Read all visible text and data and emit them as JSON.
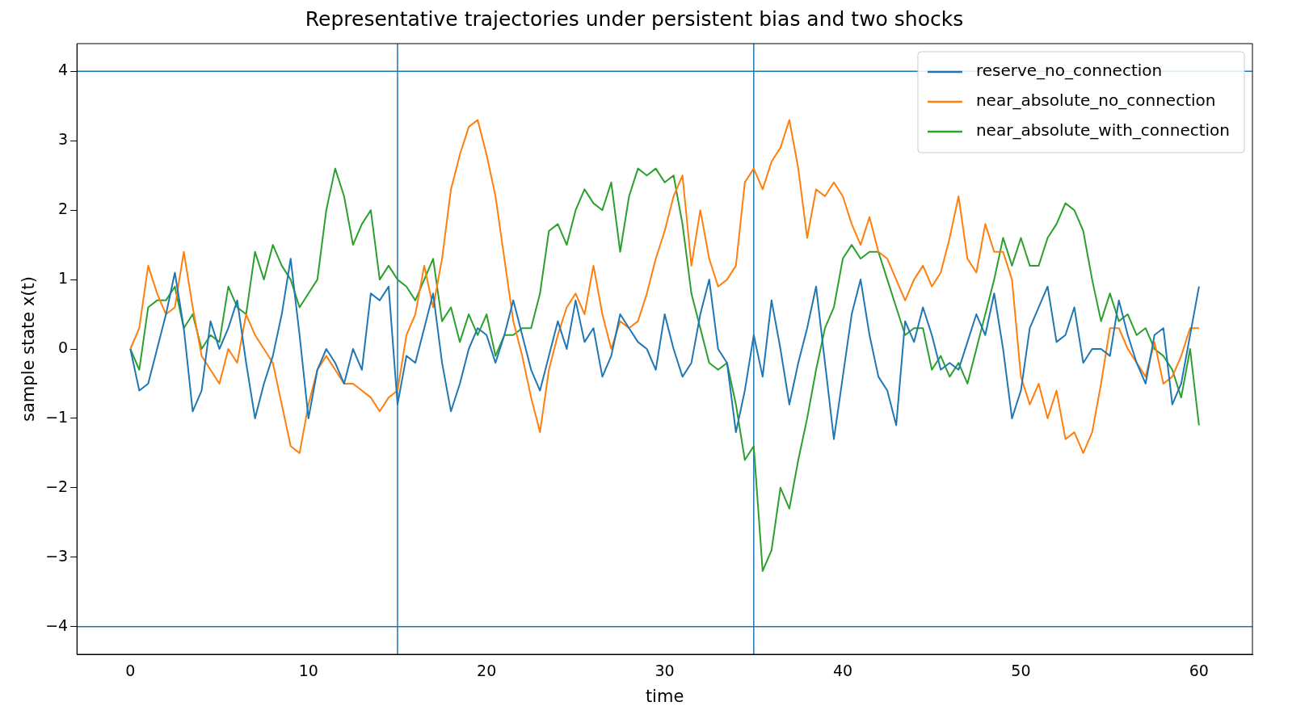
{
  "chart_data": {
    "type": "line",
    "title": "Representative trajectories under persistent bias and two shocks",
    "xlabel": "time",
    "ylabel": "sample state x(t)",
    "x": [
      0,
      0.5,
      1,
      1.5,
      2,
      2.5,
      3,
      3.5,
      4,
      4.5,
      5,
      5.5,
      6,
      6.5,
      7,
      7.5,
      8,
      8.5,
      9,
      9.5,
      10,
      10.5,
      11,
      11.5,
      12,
      12.5,
      13,
      13.5,
      14,
      14.5,
      15,
      15.5,
      16,
      16.5,
      17,
      17.5,
      18,
      18.5,
      19,
      19.5,
      20,
      20.5,
      21,
      21.5,
      22,
      22.5,
      23,
      23.5,
      24,
      24.5,
      25,
      25.5,
      26,
      26.5,
      27,
      27.5,
      28,
      28.5,
      29,
      29.5,
      30,
      30.5,
      31,
      31.5,
      32,
      32.5,
      33,
      33.5,
      34,
      34.5,
      35,
      35.5,
      36,
      36.5,
      37,
      37.5,
      38,
      38.5,
      39,
      39.5,
      40,
      40.5,
      41,
      41.5,
      42,
      42.5,
      43,
      43.5,
      44,
      44.5,
      45,
      45.5,
      46,
      46.5,
      47,
      47.5,
      48,
      48.5,
      49,
      49.5,
      50,
      50.5,
      51,
      51.5,
      52,
      52.5,
      53,
      53.5,
      54,
      54.5,
      55,
      55.5,
      56,
      56.5,
      57,
      57.5,
      58,
      58.5,
      59,
      59.5,
      60
    ],
    "series": [
      {
        "name": "reserve_no_connection",
        "color": "#1f77b4",
        "values": [
          0.0,
          -0.6,
          -0.5,
          0.0,
          0.5,
          1.1,
          0.3,
          -0.9,
          -0.6,
          0.4,
          0.0,
          0.3,
          0.7,
          -0.2,
          -1.0,
          -0.5,
          -0.1,
          0.5,
          1.3,
          0.2,
          -1.0,
          -0.3,
          0.0,
          -0.2,
          -0.5,
          0.0,
          -0.3,
          0.8,
          0.7,
          0.9,
          -0.8,
          -0.1,
          -0.2,
          0.3,
          0.8,
          -0.2,
          -0.9,
          -0.5,
          0.0,
          0.3,
          0.2,
          -0.2,
          0.2,
          0.7,
          0.2,
          -0.3,
          -0.6,
          -0.1,
          0.4,
          0.0,
          0.7,
          0.1,
          0.3,
          -0.4,
          -0.1,
          0.5,
          0.3,
          0.1,
          0.0,
          -0.3,
          0.5,
          0.0,
          -0.4,
          -0.2,
          0.5,
          1.0,
          0.0,
          -0.2,
          -1.2,
          -0.6,
          0.2,
          -0.4,
          0.7,
          0.0,
          -0.8,
          -0.2,
          0.3,
          0.9,
          -0.2,
          -1.3,
          -0.4,
          0.5,
          1.0,
          0.2,
          -0.4,
          -0.6,
          -1.1,
          0.4,
          0.1,
          0.6,
          0.2,
          -0.3,
          -0.2,
          -0.3,
          0.1,
          0.5,
          0.2,
          0.8,
          0.0,
          -1.0,
          -0.6,
          0.3,
          0.6,
          0.9,
          0.1,
          0.2,
          0.6,
          -0.2,
          0.0,
          0.0,
          -0.1,
          0.7,
          0.2,
          -0.2,
          -0.5,
          0.2,
          0.3,
          -0.8,
          -0.5,
          0.2,
          0.9
        ]
      },
      {
        "name": "near_absolute_no_connection",
        "color": "#ff7f0e",
        "values": [
          0.0,
          0.3,
          1.2,
          0.8,
          0.5,
          0.6,
          1.4,
          0.6,
          -0.1,
          -0.3,
          -0.5,
          0.0,
          -0.2,
          0.5,
          0.2,
          0.0,
          -0.2,
          -0.8,
          -1.4,
          -1.5,
          -0.8,
          -0.3,
          -0.1,
          -0.3,
          -0.5,
          -0.5,
          -0.6,
          -0.7,
          -0.9,
          -0.7,
          -0.6,
          0.2,
          0.5,
          1.2,
          0.6,
          1.3,
          2.3,
          2.8,
          3.2,
          3.3,
          2.8,
          2.2,
          1.3,
          0.4,
          -0.1,
          -0.7,
          -1.2,
          -0.3,
          0.2,
          0.6,
          0.8,
          0.5,
          1.2,
          0.5,
          0.0,
          0.4,
          0.3,
          0.4,
          0.8,
          1.3,
          1.7,
          2.2,
          2.5,
          1.2,
          2.0,
          1.3,
          0.9,
          1.0,
          1.2,
          2.4,
          2.6,
          2.3,
          2.7,
          2.9,
          3.3,
          2.6,
          1.6,
          2.3,
          2.2,
          2.4,
          2.2,
          1.8,
          1.5,
          1.9,
          1.4,
          1.3,
          1.0,
          0.7,
          1.0,
          1.2,
          0.9,
          1.1,
          1.6,
          2.2,
          1.3,
          1.1,
          1.8,
          1.4,
          1.4,
          1.0,
          -0.4,
          -0.8,
          -0.5,
          -1.0,
          -0.6,
          -1.3,
          -1.2,
          -1.5,
          -1.2,
          -0.5,
          0.3,
          0.3,
          0.0,
          -0.2,
          -0.4,
          0.1,
          -0.5,
          -0.4,
          -0.1,
          0.3,
          0.3
        ]
      },
      {
        "name": "near_absolute_with_connection",
        "color": "#2ca02c",
        "values": [
          0.0,
          -0.3,
          0.6,
          0.7,
          0.7,
          0.9,
          0.3,
          0.5,
          0.0,
          0.2,
          0.1,
          0.9,
          0.6,
          0.5,
          1.4,
          1.0,
          1.5,
          1.2,
          1.0,
          0.6,
          0.8,
          1.0,
          2.0,
          2.6,
          2.2,
          1.5,
          1.8,
          2.0,
          1.0,
          1.2,
          1.0,
          0.9,
          0.7,
          1.0,
          1.3,
          0.4,
          0.6,
          0.1,
          0.5,
          0.2,
          0.5,
          -0.1,
          0.2,
          0.2,
          0.3,
          0.3,
          0.8,
          1.7,
          1.8,
          1.5,
          2.0,
          2.3,
          2.1,
          2.0,
          2.4,
          1.4,
          2.2,
          2.6,
          2.5,
          2.6,
          2.4,
          2.5,
          1.8,
          0.8,
          0.3,
          -0.2,
          -0.3,
          -0.2,
          -0.8,
          -1.6,
          -1.4,
          -3.2,
          -2.9,
          -2.0,
          -2.3,
          -1.6,
          -1.0,
          -0.3,
          0.3,
          0.6,
          1.3,
          1.5,
          1.3,
          1.4,
          1.4,
          1.0,
          0.6,
          0.2,
          0.3,
          0.3,
          -0.3,
          -0.1,
          -0.4,
          -0.2,
          -0.5,
          0.0,
          0.5,
          1.0,
          1.6,
          1.2,
          1.6,
          1.2,
          1.2,
          1.6,
          1.8,
          2.1,
          2.0,
          1.7,
          1.0,
          0.4,
          0.8,
          0.4,
          0.5,
          0.2,
          0.3,
          0.0,
          -0.1,
          -0.3,
          -0.7,
          0.0,
          -1.1
        ]
      }
    ],
    "xlim": [
      -3,
      63
    ],
    "xticks": [
      0,
      10,
      20,
      30,
      40,
      50,
      60
    ],
    "ylim": [
      -4.4,
      4.4
    ],
    "yticks": [
      {
        "value": -4,
        "label": "−4"
      },
      {
        "value": -3,
        "label": "−3"
      },
      {
        "value": -2,
        "label": "−2"
      },
      {
        "value": -1,
        "label": "−1"
      },
      0,
      1,
      2,
      3,
      4
    ],
    "ref_lines": [
      {
        "axis": "y",
        "value": 4,
        "color": "#1f77b4"
      },
      {
        "axis": "y",
        "value": -4,
        "color": "#1f77b4"
      },
      {
        "axis": "x",
        "value": 15,
        "color": "#1f77b4"
      },
      {
        "axis": "x",
        "value": 35,
        "color": "#1f77b4"
      }
    ],
    "legend": "top right",
    "grid": false,
    "marker": "none",
    "line_style": "solid"
  }
}
